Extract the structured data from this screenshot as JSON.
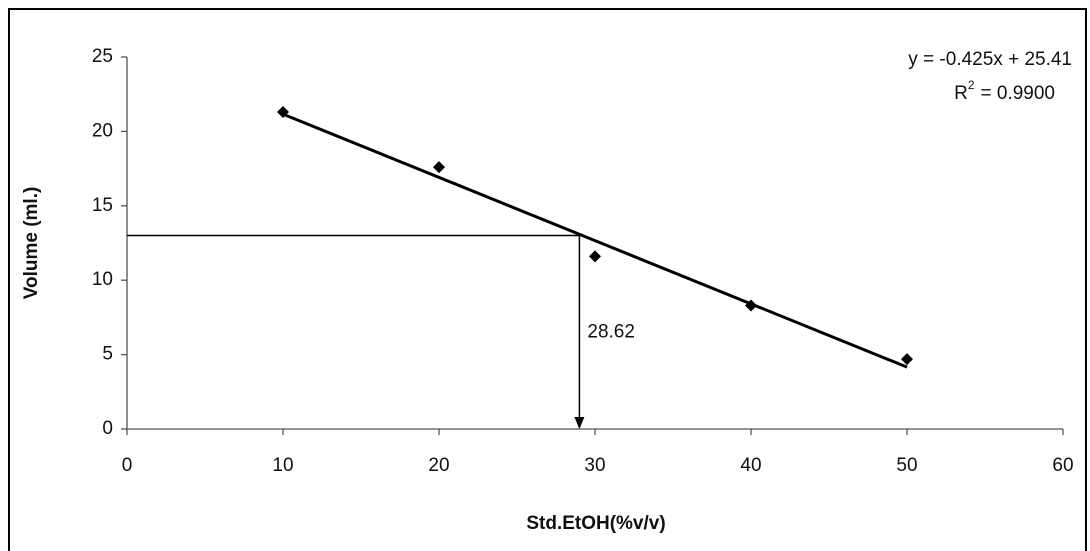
{
  "chart_data": {
    "type": "scatter",
    "x_label": "Std.EtOH(%v/v)",
    "y_label": "Volume (ml.)",
    "series": [
      {
        "name": "Volume",
        "color": "#000000",
        "x": [
          10,
          20,
          30,
          40,
          50
        ],
        "values": [
          21.3,
          17.6,
          11.6,
          8.3,
          4.7
        ]
      }
    ],
    "trendline": {
      "color": "#000000",
      "x": [
        10,
        50
      ],
      "values": [
        21.16,
        4.16
      ]
    },
    "equation": "y = -0.425x + 25.41",
    "r_squared": {
      "symbol": "R",
      "power": "2",
      "value": "= 0.9900"
    },
    "guide": {
      "x": 29,
      "y": 13,
      "label": "28.62"
    },
    "xlim": [
      0,
      60
    ],
    "xticks": [
      0,
      10,
      20,
      30,
      40,
      50,
      60
    ],
    "ylim": [
      0,
      25
    ],
    "yticks": [
      0,
      5,
      10,
      15,
      20,
      25
    ],
    "grid": false
  }
}
